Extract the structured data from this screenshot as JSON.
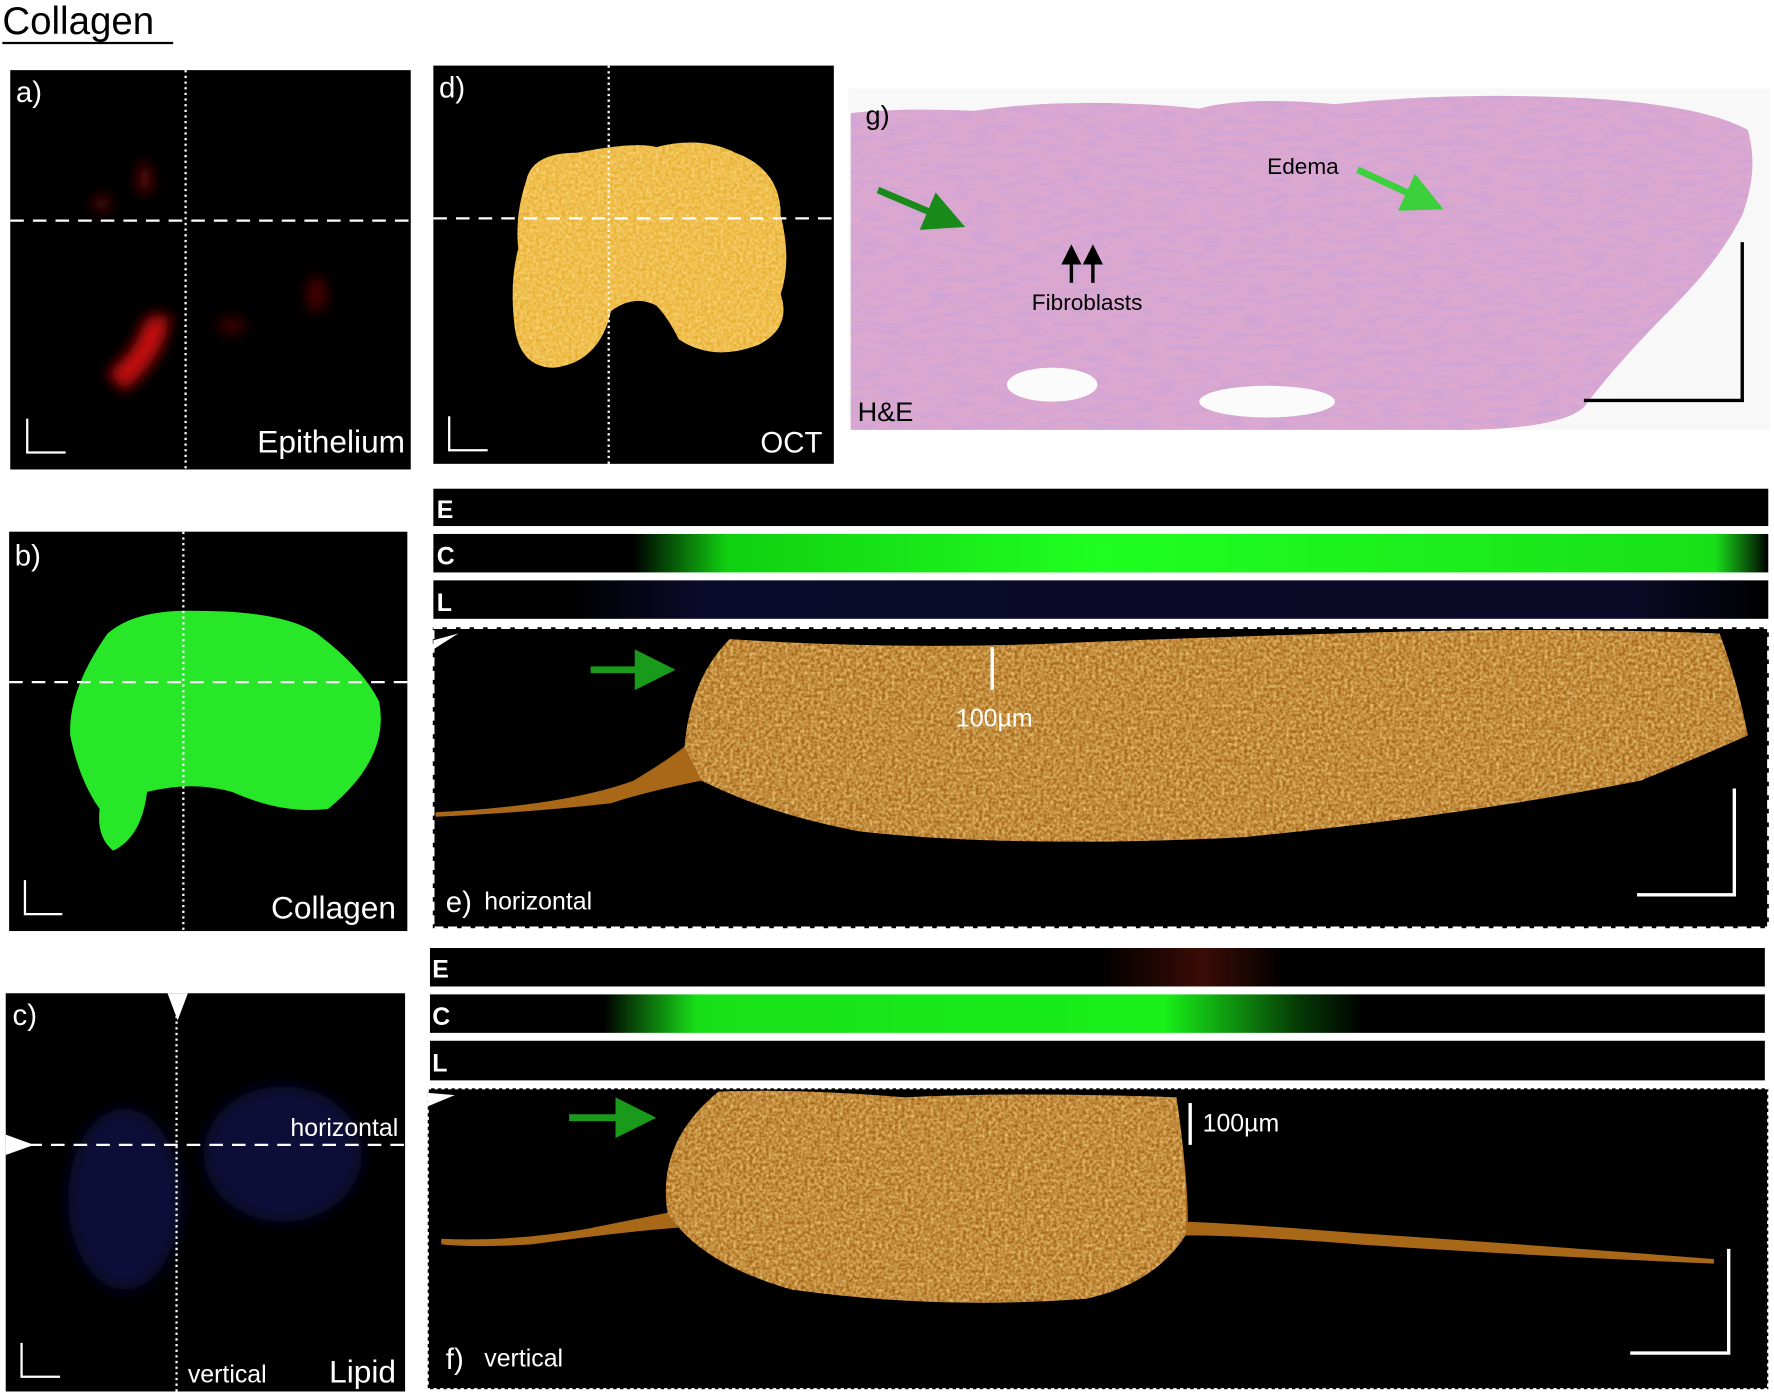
{
  "title": "Collagen",
  "panels": {
    "a": {
      "label": "a)",
      "channel": "Epithelium"
    },
    "d": {
      "label": "d)",
      "channel": "OCT"
    },
    "g": {
      "label": "g)",
      "stain": "H&E",
      "annotations": [
        "Edema",
        "Fibroblasts"
      ]
    },
    "b": {
      "label": "b)",
      "channel": "Collagen"
    },
    "c": {
      "label": "c)",
      "channel": "Lipid",
      "horizontal": "horizontal",
      "vertical": "vertical"
    },
    "e": {
      "label": "e)",
      "name": "horizontal",
      "scale": "100µm",
      "bars": [
        "E",
        "C",
        "L"
      ]
    },
    "f": {
      "label": "f)",
      "name": "vertical",
      "scale": "100µm",
      "bars": [
        "E",
        "C",
        "L"
      ]
    }
  }
}
